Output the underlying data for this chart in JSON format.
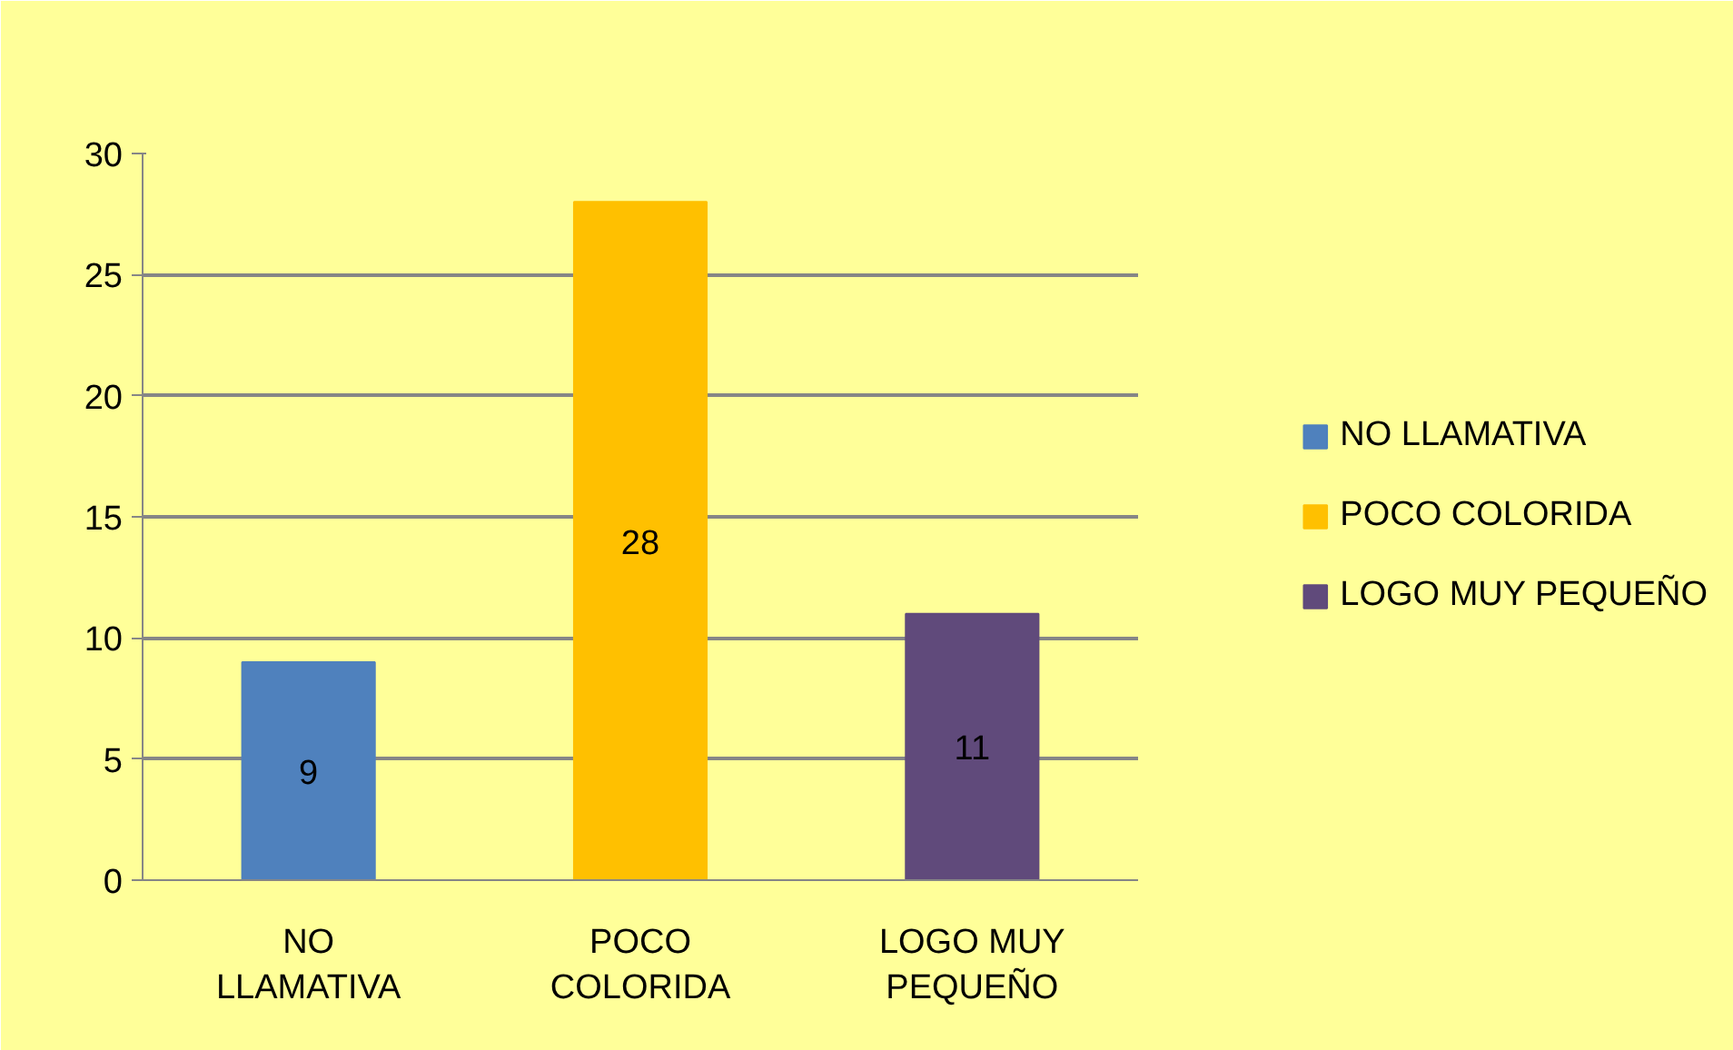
{
  "chart_data": {
    "type": "bar",
    "categories": [
      "NO LLAMATIVA",
      "POCO COLORIDA",
      "LOGO MUY PEQUEÑO"
    ],
    "series": [
      {
        "name": "NO LLAMATIVA",
        "color": "#4f81bd",
        "values": [
          9,
          null,
          null
        ]
      },
      {
        "name": "POCO COLORIDA",
        "color": "#ffc000",
        "values": [
          null,
          28,
          null
        ]
      },
      {
        "name": "LOGO MUY PEQUEÑO",
        "color": "#604a7b",
        "values": [
          null,
          null,
          11
        ]
      }
    ],
    "ylim": [
      0,
      30
    ],
    "yticks": [
      0,
      5,
      10,
      15,
      20,
      25,
      30
    ],
    "grid": "y",
    "legend": "right",
    "data_labels": true
  }
}
